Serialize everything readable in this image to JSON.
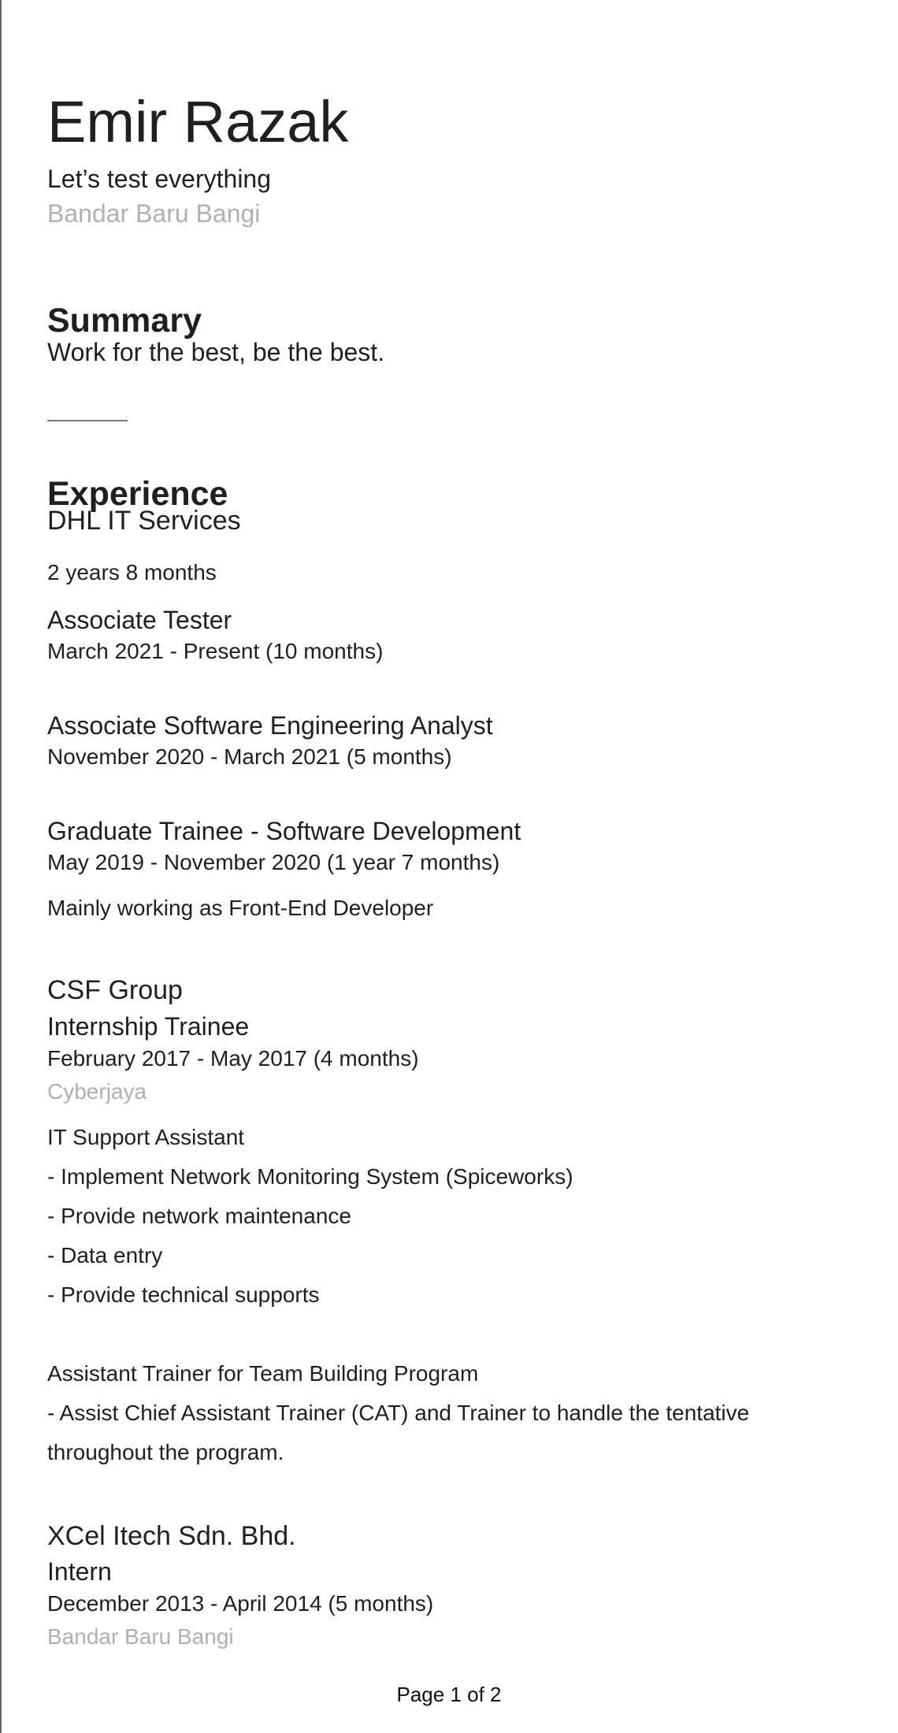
{
  "profile": {
    "name": "Emir Razak",
    "headline": "Let’s test everything",
    "location": "Bandar Baru Bangi"
  },
  "summary": {
    "title": "Summary",
    "text": "Work for the best, be the best."
  },
  "experience": {
    "title": "Experience",
    "companies": [
      {
        "name": "DHL IT Services",
        "duration": "2 years 8 months",
        "roles": [
          {
            "title": "Associate Tester",
            "dates": "March 2021 - Present (10 months)"
          },
          {
            "title": "Associate Software Engineering Analyst",
            "dates": "November 2020 - March 2021 (5 months)"
          },
          {
            "title": "Graduate Trainee - Software Development",
            "dates": "May 2019 - November 2020 (1 year 7 months)",
            "description": "Mainly working as Front-End Developer"
          }
        ]
      },
      {
        "name": "CSF Group",
        "role": "Internship Trainee",
        "dates": "February 2017 - May 2017 (4 months)",
        "location": "Cyberjaya",
        "description_lines": [
          "IT Support Assistant",
          "- Implement Network Monitoring System (Spiceworks)",
          "- Provide network maintenance",
          "- Data entry",
          "- Provide technical supports",
          "Assistant Trainer for Team Building Program",
          "- Assist Chief Assistant Trainer (CAT) and Trainer to handle the tentative",
          "throughout the program."
        ]
      },
      {
        "name": "XCel Itech Sdn. Bhd.",
        "role": "Intern",
        "dates": "December 2013 - April 2014 (5 months)",
        "location": "Bandar Baru Bangi"
      }
    ]
  },
  "footer": {
    "page_label": "Page 1 of 2"
  }
}
